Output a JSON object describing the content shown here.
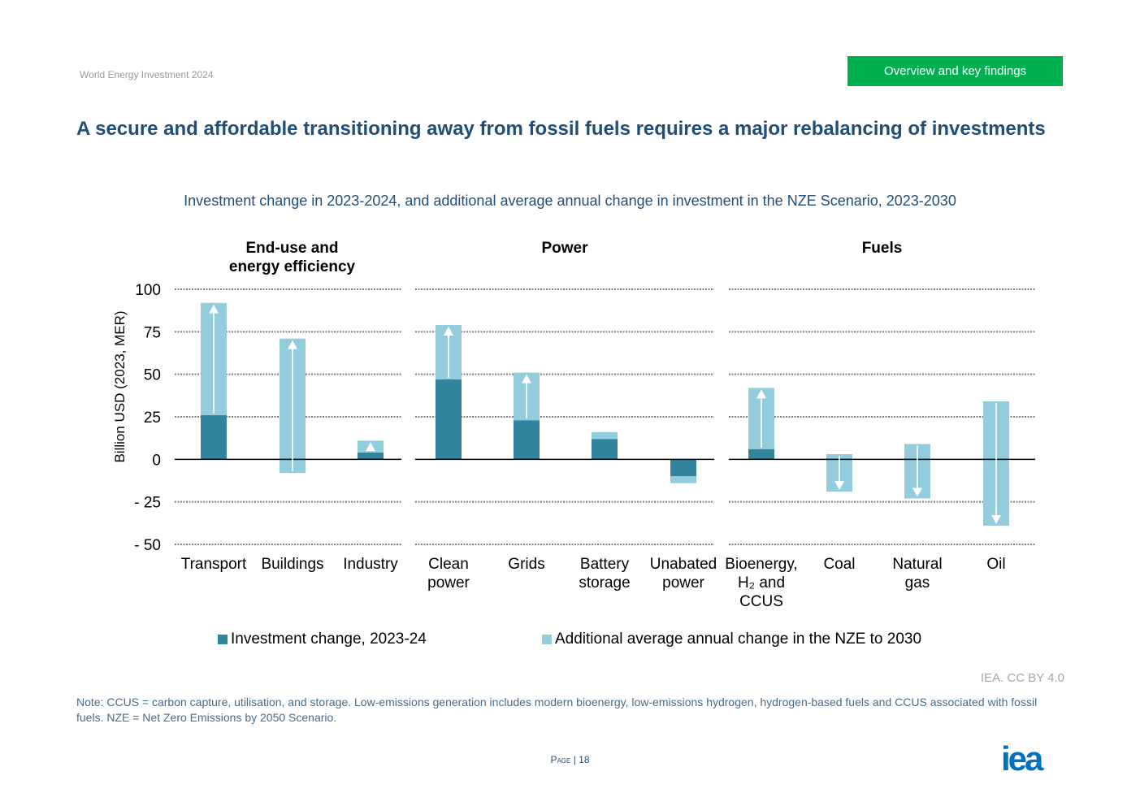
{
  "header": {
    "report": "World Energy Investment 2024",
    "section": "Overview and key findings"
  },
  "title": "A secure and affordable transitioning away from fossil fuels requires a major rebalancing of investments",
  "chart_data": {
    "type": "bar",
    "stacked": true,
    "title": "Investment change in 2023-2024, and additional average annual change in investment in the NZE Scenario, 2023-2030",
    "ylabel": "Billion USD (2023, MER)",
    "ylim": [
      -50,
      100
    ],
    "yticks": [
      100,
      75,
      50,
      25,
      0,
      -25,
      -50
    ],
    "ytick_labels": [
      "100",
      "75",
      "50",
      "25",
      "0",
      "- 25",
      "- 50"
    ],
    "grid": true,
    "legend_position": "bottom",
    "groups": [
      {
        "name": "End-use and energy efficiency",
        "name_lines": [
          "End-use and",
          "energy efficiency"
        ],
        "categories": [
          {
            "label_lines": [
              "Transport"
            ],
            "investment_change": 26,
            "nze_end": 92
          },
          {
            "label_lines": [
              "Buildings"
            ],
            "investment_change": -8,
            "nze_end": 71
          },
          {
            "label_lines": [
              "Industry"
            ],
            "investment_change": 4,
            "nze_end": 11
          }
        ]
      },
      {
        "name": "Power",
        "name_lines": [
          "Power"
        ],
        "categories": [
          {
            "label_lines": [
              "Clean",
              "power"
            ],
            "investment_change": 47,
            "nze_end": 79
          },
          {
            "label_lines": [
              "Grids"
            ],
            "investment_change": 23,
            "nze_end": 51
          },
          {
            "label_lines": [
              "Battery",
              "storage"
            ],
            "investment_change": 12,
            "nze_end": 16
          },
          {
            "label_lines": [
              "Unabated",
              "power"
            ],
            "investment_change": -10,
            "nze_end": -14
          }
        ]
      },
      {
        "name": "Fuels",
        "name_lines": [
          "Fuels"
        ],
        "categories": [
          {
            "label_lines": [
              "Bioenergy,",
              "H₂ and",
              "CCUS"
            ],
            "investment_change": 6,
            "nze_end": 42
          },
          {
            "label_lines": [
              "Coal"
            ],
            "investment_change": 3,
            "nze_end": -19
          },
          {
            "label_lines": [
              "Natural",
              "gas"
            ],
            "investment_change": 9,
            "nze_end": -23
          },
          {
            "label_lines": [
              "Oil"
            ],
            "investment_change": 34,
            "nze_end": -39
          }
        ]
      }
    ],
    "series": [
      {
        "name": "Investment change, 2023-24",
        "color": "#31859c"
      },
      {
        "name": "Additional average annual change in the NZE to 2030",
        "color": "#93cddd"
      }
    ]
  },
  "source": "IEA. CC BY 4.0",
  "note": "Note: CCUS = carbon capture, utilisation, and storage. Low-emissions generation includes modern bioenergy, low-emissions hydrogen, hydrogen-based fuels and CCUS associated with fossil fuels. NZE = Net Zero Emissions by 2050 Scenario.",
  "page": {
    "label": "Page",
    "number": "18"
  },
  "logo_text": "iea",
  "colors": {
    "accent_green": "#00b050",
    "title_blue": "#1f4e79",
    "logo_blue": "#0070c0"
  }
}
